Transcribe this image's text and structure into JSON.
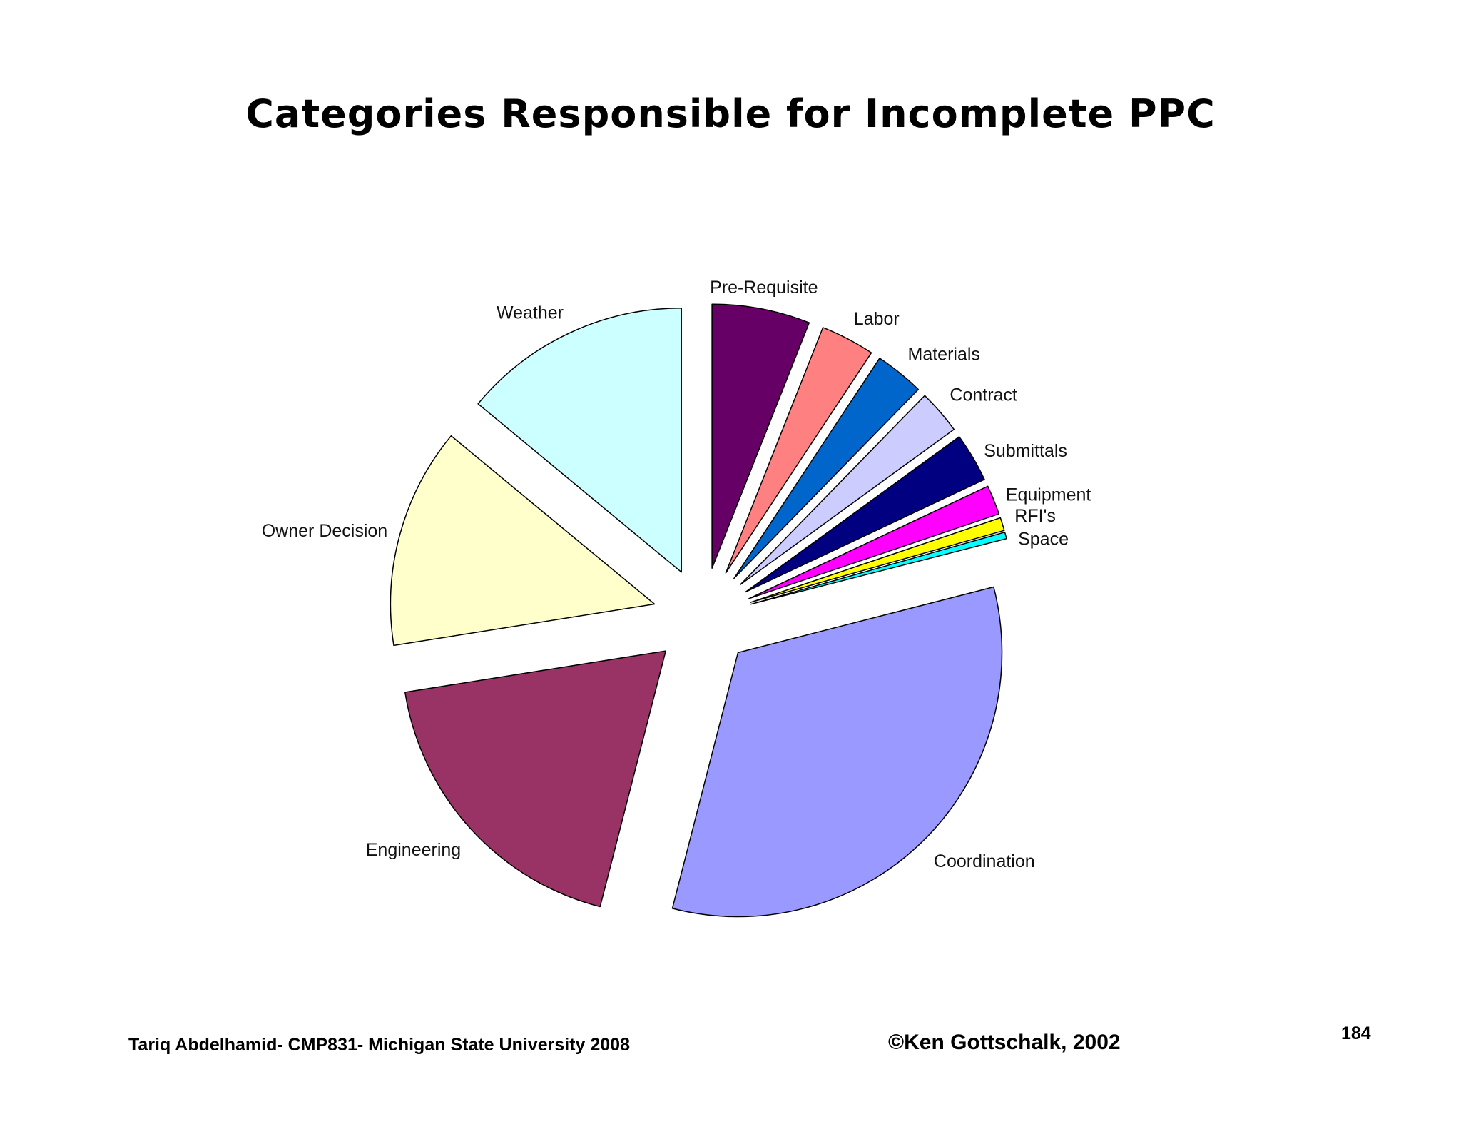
{
  "chart_data": {
    "type": "pie",
    "title": "Categories Responsible for Incomplete PPC",
    "exploded": true,
    "start": "12 o'clock, clockwise",
    "slices": [
      {
        "label": "Pre-Requisite",
        "value": 6.0,
        "color": "#660066"
      },
      {
        "label": "Labor",
        "value": 3.3,
        "color": "#ff8080"
      },
      {
        "label": "Materials",
        "value": 3.0,
        "color": "#0066cc"
      },
      {
        "label": "Contract",
        "value": 2.7,
        "color": "#ccccff"
      },
      {
        "label": "Submittals",
        "value": 3.0,
        "color": "#000080"
      },
      {
        "label": "Equipment",
        "value": 1.8,
        "color": "#ff00ff"
      },
      {
        "label": "RFI's",
        "value": 0.8,
        "color": "#ffff00"
      },
      {
        "label": "Space",
        "value": 0.4,
        "color": "#00ffff"
      },
      {
        "label": "Coordination",
        "value": 33.0,
        "color": "#9999ff"
      },
      {
        "label": "Engineering",
        "value": 18.5,
        "color": "#993366"
      },
      {
        "label": "Owner Decision",
        "value": 13.5,
        "color": "#ffffcc"
      },
      {
        "label": "Weather",
        "value": 14.0,
        "color": "#ccffff"
      }
    ]
  },
  "footer": {
    "author": "Tariq Abdelhamid- CMP831- Michigan State University 2008",
    "copyright": "©Ken Gottschalk, 2002",
    "page_number": "184"
  }
}
